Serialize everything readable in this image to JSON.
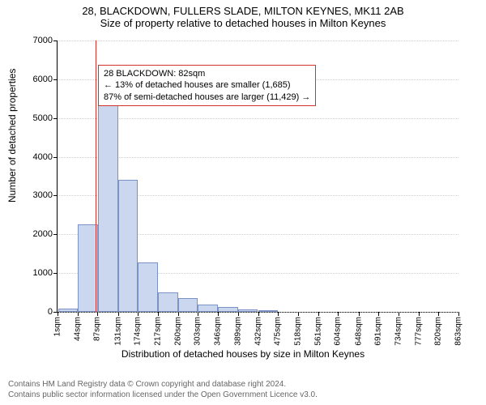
{
  "title": "28, BLACKDOWN, FULLERS SLADE, MILTON KEYNES, MK11 2AB",
  "subtitle": "Size of property relative to detached houses in Milton Keynes",
  "ylabel": "Number of detached properties",
  "xlabel": "Distribution of detached houses by size in Milton Keynes",
  "footer_line1": "Contains HM Land Registry data © Crown copyright and database right 2024.",
  "footer_line2": "Contains public sector information licensed under the Open Government Licence v3.0.",
  "chart": {
    "type": "histogram",
    "ylim": [
      0,
      7000
    ],
    "yticks": [
      0,
      1000,
      2000,
      3000,
      4000,
      5000,
      6000,
      7000
    ],
    "xtick_values": [
      1,
      44,
      87,
      131,
      174,
      217,
      260,
      303,
      346,
      389,
      432,
      475,
      518,
      561,
      604,
      648,
      691,
      734,
      777,
      820,
      863
    ],
    "xtick_unit": "sqm",
    "bin_width": 43,
    "bars": [
      {
        "x": 2,
        "count": 90
      },
      {
        "x": 45,
        "count": 2250
      },
      {
        "x": 88,
        "count": 5430
      },
      {
        "x": 131,
        "count": 3400
      },
      {
        "x": 174,
        "count": 1280
      },
      {
        "x": 217,
        "count": 500
      },
      {
        "x": 260,
        "count": 360
      },
      {
        "x": 303,
        "count": 180
      },
      {
        "x": 346,
        "count": 120
      },
      {
        "x": 389,
        "count": 70
      },
      {
        "x": 432,
        "count": 40
      }
    ],
    "bar_fill": "#cbd7ee",
    "bar_stroke": "#7a93c4",
    "grid_color": "#d0d0d0",
    "marker": {
      "x": 82,
      "color": "#d3322b"
    },
    "annotation": {
      "border": "#d3322b",
      "lines": [
        "28 BLACKDOWN: 82sqm",
        "← 13% of detached houses are smaller (1,685)",
        "87% of semi-detached houses are larger (11,429) →"
      ]
    },
    "title_fontsize": 13,
    "label_fontsize": 12,
    "tick_fontsize": 11
  }
}
